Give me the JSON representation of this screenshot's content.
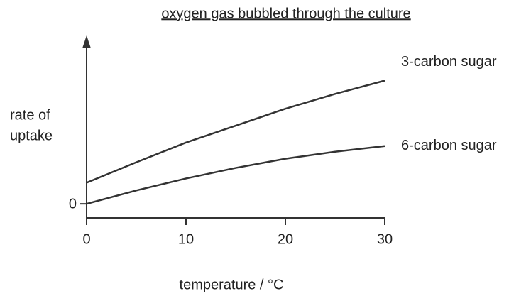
{
  "chart_data": {
    "type": "line",
    "title": "oxygen gas bubbled through the culture",
    "y_label_lines": [
      "rate of",
      "uptake"
    ],
    "x_label": "temperature / °C",
    "x": [
      0,
      5,
      10,
      15,
      20,
      25,
      30
    ],
    "xlim": [
      0,
      30
    ],
    "xticks": [
      0,
      10,
      20,
      30
    ],
    "ylim": [
      -2,
      24
    ],
    "yticks": [
      0
    ],
    "grid": false,
    "series": [
      {
        "name": "3-carbon sugar",
        "color": "#333333",
        "values": [
          3,
          5.9,
          8.7,
          11.1,
          13.5,
          15.6,
          17.5
        ]
      },
      {
        "name": "6-carbon sugar",
        "color": "#333333",
        "values": [
          0,
          1.9,
          3.6,
          5.1,
          6.4,
          7.4,
          8.2
        ]
      }
    ]
  }
}
